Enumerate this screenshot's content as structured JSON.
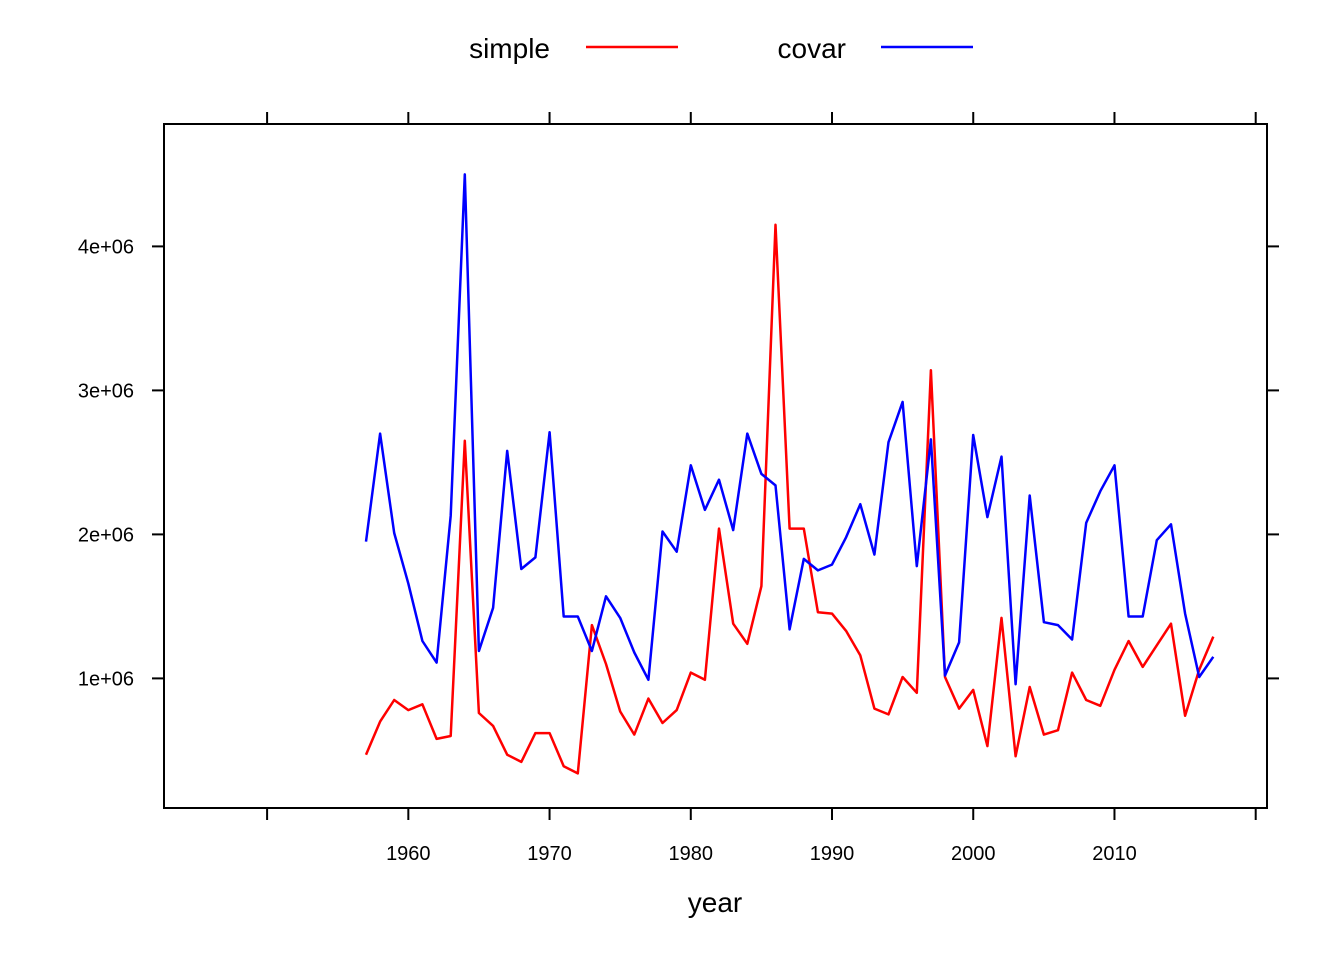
{
  "chart_data": {
    "type": "line",
    "xlabel": "year",
    "ylabel": "",
    "xlim": [
      1942.7,
      2020.8
    ],
    "ylim": [
      100000,
      4850000
    ],
    "x_ticks": [
      1960,
      1970,
      1980,
      1990,
      2000,
      2010
    ],
    "x_tick_labels": [
      "1960",
      "1970",
      "1980",
      "1990",
      "2000",
      "2010"
    ],
    "y_ticks": [
      1000000,
      2000000,
      3000000,
      4000000
    ],
    "y_tick_labels": [
      "1e+06",
      "2e+06",
      "3e+06",
      "4e+06"
    ],
    "legend_position": "top",
    "x": [
      1957,
      1958,
      1959,
      1960,
      1961,
      1962,
      1963,
      1964,
      1965,
      1966,
      1967,
      1968,
      1969,
      1970,
      1971,
      1972,
      1973,
      1974,
      1975,
      1976,
      1977,
      1978,
      1979,
      1980,
      1981,
      1982,
      1983,
      1984,
      1985,
      1986,
      1987,
      1988,
      1989,
      1990,
      1991,
      1992,
      1993,
      1994,
      1995,
      1996,
      1997,
      1998,
      1999,
      2000,
      2001,
      2002,
      2003,
      2004,
      2005,
      2006,
      2007,
      2008,
      2009,
      2010,
      2011,
      2012,
      2013,
      2014,
      2015,
      2016,
      2017
    ],
    "series": [
      {
        "name": "simple",
        "color": "#ff0000",
        "values": [
          470000,
          700000,
          850000,
          780000,
          820000,
          580000,
          600000,
          2650000,
          760000,
          670000,
          470000,
          420000,
          620000,
          620000,
          390000,
          340000,
          1370000,
          1100000,
          770000,
          610000,
          860000,
          690000,
          780000,
          1040000,
          990000,
          2040000,
          1380000,
          1240000,
          1640000,
          4150000,
          2040000,
          2040000,
          1460000,
          1450000,
          1330000,
          1160000,
          790000,
          750000,
          1010000,
          900000,
          3140000,
          1010000,
          790000,
          920000,
          530000,
          1420000,
          460000,
          940000,
          610000,
          640000,
          1040000,
          850000,
          810000,
          1060000,
          1260000,
          1080000,
          1230000,
          1380000,
          740000,
          1060000,
          1290000
        ]
      },
      {
        "name": "covar",
        "color": "#0000ff",
        "values": [
          1950000,
          2700000,
          2010000,
          1660000,
          1260000,
          1110000,
          2130000,
          4500000,
          1190000,
          1490000,
          2580000,
          1760000,
          1840000,
          2710000,
          1430000,
          1430000,
          1190000,
          1570000,
          1420000,
          1180000,
          990000,
          2020000,
          1880000,
          2480000,
          2170000,
          2380000,
          2030000,
          2700000,
          2420000,
          2340000,
          1340000,
          1830000,
          1750000,
          1790000,
          1980000,
          2210000,
          1860000,
          2640000,
          2920000,
          1780000,
          2660000,
          1020000,
          1250000,
          2690000,
          2120000,
          2540000,
          960000,
          2270000,
          1390000,
          1370000,
          1270000,
          2080000,
          2300000,
          2480000,
          1430000,
          1430000,
          1960000,
          2070000,
          1450000,
          1010000,
          1150000
        ]
      }
    ]
  }
}
